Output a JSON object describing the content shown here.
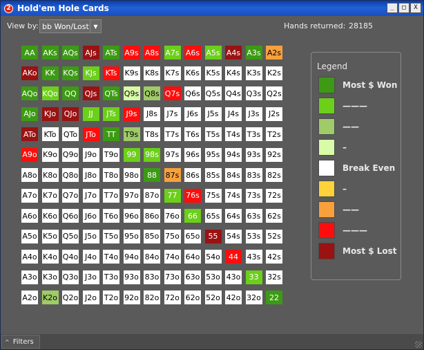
{
  "window": {
    "title": "Hold'em Hole Cards",
    "icon_text": "2",
    "minimize": "_",
    "maximize": "□",
    "close": "X"
  },
  "toolbar": {
    "view_by_label": "View by:",
    "view_by_value": "bb Won/Lost",
    "hands_label": "Hands returned:",
    "hands_value": "28185"
  },
  "colors": {
    "dg": "#3c9a14",
    "lg": "#6ccf1a",
    "mg": "#9fcb68",
    "pg": "#d8fba8",
    "w": "#ffffff",
    "y": "#ffd23a",
    "o": "#f8a13c",
    "r": "#ff0d0d",
    "dr": "#9a1212"
  },
  "grid": {
    "rows": [
      [
        [
          "AA",
          "dg"
        ],
        [
          "AKs",
          "dg"
        ],
        [
          "AQs",
          "dg"
        ],
        [
          "AJs",
          "dr"
        ],
        [
          "ATs",
          "dg"
        ],
        [
          "A9s",
          "r"
        ],
        [
          "A8s",
          "r"
        ],
        [
          "A7s",
          "lg"
        ],
        [
          "A6s",
          "r"
        ],
        [
          "A5s",
          "lg"
        ],
        [
          "A4s",
          "dr"
        ],
        [
          "A3s",
          "dg"
        ],
        [
          "A2s",
          "o"
        ]
      ],
      [
        [
          "AKo",
          "dr"
        ],
        [
          "KK",
          "dg"
        ],
        [
          "KQs",
          "dg"
        ],
        [
          "KJs",
          "lg"
        ],
        [
          "KTs",
          "r"
        ],
        [
          "K9s",
          "w"
        ],
        [
          "K8s",
          "w"
        ],
        [
          "K7s",
          "w"
        ],
        [
          "K6s",
          "w"
        ],
        [
          "K5s",
          "w"
        ],
        [
          "K4s",
          "w"
        ],
        [
          "K3s",
          "w"
        ],
        [
          "K2s",
          "w"
        ]
      ],
      [
        [
          "AQo",
          "dg"
        ],
        [
          "KQo",
          "lg"
        ],
        [
          "QQ",
          "dg"
        ],
        [
          "QJs",
          "dr"
        ],
        [
          "QTs",
          "dg"
        ],
        [
          "Q9s",
          "pg"
        ],
        [
          "Q8s",
          "mg"
        ],
        [
          "Q7s",
          "r"
        ],
        [
          "Q6s",
          "w"
        ],
        [
          "Q5s",
          "w"
        ],
        [
          "Q4s",
          "w"
        ],
        [
          "Q3s",
          "w"
        ],
        [
          "Q2s",
          "w"
        ]
      ],
      [
        [
          "AJo",
          "dg"
        ],
        [
          "KJo",
          "dr"
        ],
        [
          "QJo",
          "dr"
        ],
        [
          "JJ",
          "lg"
        ],
        [
          "JTs",
          "lg"
        ],
        [
          "J9s",
          "r"
        ],
        [
          "J8s",
          "w"
        ],
        [
          "J7s",
          "w"
        ],
        [
          "J6s",
          "w"
        ],
        [
          "J5s",
          "w"
        ],
        [
          "J4s",
          "w"
        ],
        [
          "J3s",
          "w"
        ],
        [
          "J2s",
          "w"
        ]
      ],
      [
        [
          "ATo",
          "dr"
        ],
        [
          "KTo",
          "w"
        ],
        [
          "QTo",
          "w"
        ],
        [
          "JTo",
          "r"
        ],
        [
          "TT",
          "dg"
        ],
        [
          "T9s",
          "mg"
        ],
        [
          "T8s",
          "w"
        ],
        [
          "T7s",
          "w"
        ],
        [
          "T6s",
          "w"
        ],
        [
          "T5s",
          "w"
        ],
        [
          "T4s",
          "w"
        ],
        [
          "T3s",
          "w"
        ],
        [
          "T2s",
          "w"
        ]
      ],
      [
        [
          "A9o",
          "r"
        ],
        [
          "K9o",
          "w"
        ],
        [
          "Q9o",
          "w"
        ],
        [
          "J9o",
          "w"
        ],
        [
          "T9o",
          "w"
        ],
        [
          "99",
          "lg"
        ],
        [
          "98s",
          "lg"
        ],
        [
          "97s",
          "w"
        ],
        [
          "96s",
          "w"
        ],
        [
          "95s",
          "w"
        ],
        [
          "94s",
          "w"
        ],
        [
          "93s",
          "w"
        ],
        [
          "92s",
          "w"
        ]
      ],
      [
        [
          "A8o",
          "w"
        ],
        [
          "K8o",
          "w"
        ],
        [
          "Q8o",
          "w"
        ],
        [
          "J8o",
          "w"
        ],
        [
          "T8o",
          "w"
        ],
        [
          "98o",
          "w"
        ],
        [
          "88",
          "dg"
        ],
        [
          "87s",
          "o"
        ],
        [
          "86s",
          "w"
        ],
        [
          "85s",
          "w"
        ],
        [
          "84s",
          "w"
        ],
        [
          "83s",
          "w"
        ],
        [
          "82s",
          "w"
        ]
      ],
      [
        [
          "A7o",
          "w"
        ],
        [
          "K7o",
          "w"
        ],
        [
          "Q7o",
          "w"
        ],
        [
          "J7o",
          "w"
        ],
        [
          "T7o",
          "w"
        ],
        [
          "97o",
          "w"
        ],
        [
          "87o",
          "w"
        ],
        [
          "77",
          "lg"
        ],
        [
          "76s",
          "r"
        ],
        [
          "75s",
          "w"
        ],
        [
          "74s",
          "w"
        ],
        [
          "73s",
          "w"
        ],
        [
          "72s",
          "w"
        ]
      ],
      [
        [
          "A6o",
          "w"
        ],
        [
          "K6o",
          "w"
        ],
        [
          "Q6o",
          "w"
        ],
        [
          "J6o",
          "w"
        ],
        [
          "T6o",
          "w"
        ],
        [
          "96o",
          "w"
        ],
        [
          "86o",
          "w"
        ],
        [
          "76o",
          "w"
        ],
        [
          "66",
          "lg"
        ],
        [
          "65s",
          "w"
        ],
        [
          "64s",
          "w"
        ],
        [
          "63s",
          "w"
        ],
        [
          "62s",
          "w"
        ]
      ],
      [
        [
          "A5o",
          "w"
        ],
        [
          "K5o",
          "w"
        ],
        [
          "Q5o",
          "w"
        ],
        [
          "J5o",
          "w"
        ],
        [
          "T5o",
          "w"
        ],
        [
          "95o",
          "w"
        ],
        [
          "85o",
          "w"
        ],
        [
          "75o",
          "w"
        ],
        [
          "65o",
          "w"
        ],
        [
          "55",
          "dr"
        ],
        [
          "54s",
          "w"
        ],
        [
          "53s",
          "w"
        ],
        [
          "52s",
          "w"
        ]
      ],
      [
        [
          "A4o",
          "w"
        ],
        [
          "K4o",
          "w"
        ],
        [
          "Q4o",
          "w"
        ],
        [
          "J4o",
          "w"
        ],
        [
          "T4o",
          "w"
        ],
        [
          "94o",
          "w"
        ],
        [
          "84o",
          "w"
        ],
        [
          "74o",
          "w"
        ],
        [
          "64o",
          "w"
        ],
        [
          "54o",
          "w"
        ],
        [
          "44",
          "r"
        ],
        [
          "43s",
          "w"
        ],
        [
          "42s",
          "w"
        ]
      ],
      [
        [
          "A3o",
          "w"
        ],
        [
          "K3o",
          "w"
        ],
        [
          "Q3o",
          "w"
        ],
        [
          "J3o",
          "w"
        ],
        [
          "T3o",
          "w"
        ],
        [
          "93o",
          "w"
        ],
        [
          "83o",
          "w"
        ],
        [
          "73o",
          "w"
        ],
        [
          "63o",
          "w"
        ],
        [
          "53o",
          "w"
        ],
        [
          "43o",
          "w"
        ],
        [
          "33",
          "lg"
        ],
        [
          "32s",
          "w"
        ]
      ],
      [
        [
          "A2o",
          "w"
        ],
        [
          "K2o",
          "mg"
        ],
        [
          "Q2o",
          "w"
        ],
        [
          "J2o",
          "w"
        ],
        [
          "T2o",
          "w"
        ],
        [
          "92o",
          "w"
        ],
        [
          "82o",
          "w"
        ],
        [
          "72o",
          "w"
        ],
        [
          "62o",
          "w"
        ],
        [
          "52o",
          "w"
        ],
        [
          "42o",
          "w"
        ],
        [
          "32o",
          "w"
        ],
        [
          "22",
          "dg"
        ]
      ]
    ]
  },
  "legend": {
    "title": "Legend",
    "items": [
      {
        "label": "Most $ Won",
        "color": "dg"
      },
      {
        "label": "———",
        "color": "lg"
      },
      {
        "label": "——",
        "color": "mg"
      },
      {
        "label": "–",
        "color": "pg"
      },
      {
        "label": "Break Even",
        "color": "w"
      },
      {
        "label": "–",
        "color": "y"
      },
      {
        "label": "——",
        "color": "o"
      },
      {
        "label": "———",
        "color": "r"
      },
      {
        "label": "Most $ Lost",
        "color": "dr"
      }
    ]
  },
  "footer": {
    "filters_label": "Filters",
    "caret": "^"
  }
}
